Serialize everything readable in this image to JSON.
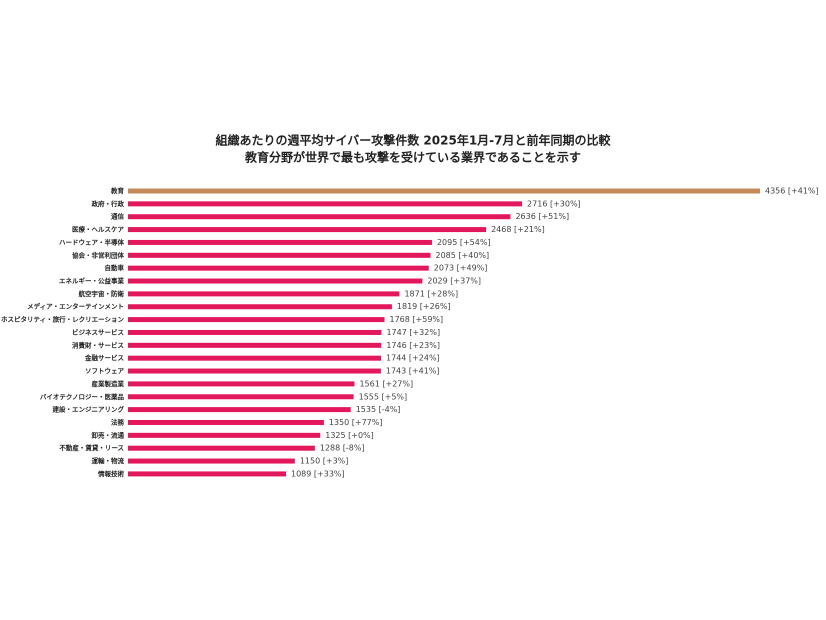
{
  "chart_data": {
    "type": "bar",
    "orientation": "horizontal",
    "title": "組織あたりの週平均サイバー攻撃件数 2025年1月-7月と前年同期の比較",
    "subtitle": "教育分野が世界で最も攻撃を受けている業界であることを示す",
    "categories": [
      "教育",
      "政府・行政",
      "通信",
      "医療・ヘルスケア",
      "ハードウェア・半導体",
      "協会・非営利団体",
      "自動車",
      "エネルギー・公益事業",
      "航空宇宙・防衛",
      "メディア・エンターテインメント",
      "ホスピタリティ・旅行・レクリエーション",
      "ビジネスサービス",
      "消費財・サービス",
      "金融サービス",
      "ソフトウェア",
      "産業製造業",
      "バイオテクノロジー・医薬品",
      "建設・エンジニアリング",
      "法務",
      "卸売・流通",
      "不動産・賃貸・リース",
      "運輸・物流",
      "情報技術"
    ],
    "values": [
      4356,
      2716,
      2636,
      2468,
      2095,
      2085,
      2073,
      2029,
      1871,
      1819,
      1768,
      1747,
      1746,
      1744,
      1743,
      1561,
      1555,
      1535,
      1350,
      1325,
      1288,
      1150,
      1089
    ],
    "value_labels": [
      "4356 [+41%]",
      "2716 [+30%]",
      "2636 [+51%]",
      "2468 [+21%]",
      "2095 [+54%]",
      "2085 [+40%]",
      "2073 [+49%]",
      "2029 [+37%]",
      "1871 [+28%]",
      "1819 [+26%]",
      "1768 [+59%]",
      "1747 [+32%]",
      "1746 [+23%]",
      "1744 [+24%]",
      "1743 [+41%]",
      "1561 [+27%]",
      "1555 [+5%]",
      "1535 [-4%]",
      "1350 [+77%]",
      "1325 [+0%]",
      "1288 [-8%]",
      "1150 [+3%]",
      "1089 [+33%]"
    ],
    "colors": [
      "#c48a5a",
      "#e3175b",
      "#e3175b",
      "#e3175b",
      "#e3175b",
      "#e3175b",
      "#e3175b",
      "#e3175b",
      "#e3175b",
      "#e3175b",
      "#e3175b",
      "#e3175b",
      "#e3175b",
      "#e3175b",
      "#e3175b",
      "#e3175b",
      "#e3175b",
      "#e3175b",
      "#e3175b",
      "#e3175b",
      "#e3175b",
      "#e3175b",
      "#e3175b"
    ]
  }
}
